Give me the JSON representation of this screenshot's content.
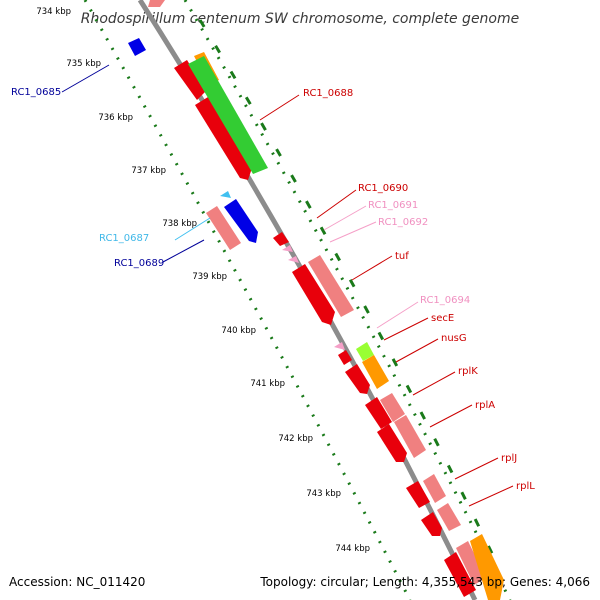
{
  "title": "Rhodospirillum centenum SW chromosome, complete genome",
  "footer": {
    "accession": "Accession: NC_011420",
    "summary": "Topology: circular; Length: 4,355,543 bp; Genes: 4,066"
  },
  "ruler": {
    "ticks": [
      "734 kbp",
      "735 kbp",
      "736 kbp",
      "737 kbp",
      "738 kbp",
      "739 kbp",
      "740 kbp",
      "741 kbp",
      "742 kbp",
      "743 kbp",
      "744 kbp"
    ]
  },
  "gene_labels": {
    "rc1_0685": "RC1_0685",
    "rc1_0687": "RC1_0687",
    "rc1_0689": "RC1_0689",
    "rc1_0688": "RC1_0688",
    "rc1_0690": "RC1_0690",
    "rc1_0691": "RC1_0691",
    "rc1_0692": "RC1_0692",
    "tuf": "tuf",
    "rc1_0694": "RC1_0694",
    "secE": "secE",
    "nusG": "nusG",
    "rplK": "rplK",
    "rplA": "rplA",
    "rplJ": "rplJ",
    "rplL": "rplL"
  },
  "colors": {
    "backbone": "#8c8c8c",
    "ruler_dots": "#1a7a1a",
    "gene_red": "#e8000b",
    "gene_pink": "#f08080",
    "gene_light_pink": "#f5a0c8",
    "gene_blue": "#0000e6",
    "gene_cyan": "#40c0f0",
    "gene_green": "#33cc33",
    "gene_orange": "#ff9900",
    "gene_lime": "#99ff33",
    "label_navy": "#000099",
    "label_red": "#cc0000"
  }
}
